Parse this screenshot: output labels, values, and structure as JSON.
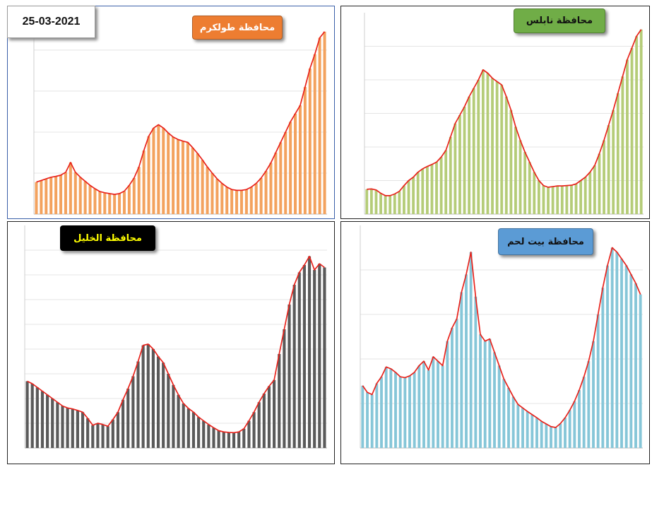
{
  "date": "25-03-2021",
  "chart_data": [
    {
      "type": "bar",
      "title": "محافظة طولكرم",
      "line_overlay": true,
      "grid": true,
      "grid_step": 1,
      "ylim": [
        0,
        4.55
      ],
      "bar_color": "#f3a25e",
      "line_color": "#e8231c",
      "label_bg": "#ed7d31",
      "label_fg": "#ffffff",
      "values": [
        0.78,
        0.82,
        0.86,
        0.9,
        0.92,
        0.95,
        1.02,
        1.26,
        1.02,
        0.9,
        0.8,
        0.7,
        0.62,
        0.55,
        0.52,
        0.5,
        0.48,
        0.5,
        0.56,
        0.7,
        0.88,
        1.15,
        1.55,
        1.9,
        2.1,
        2.18,
        2.1,
        1.98,
        1.88,
        1.82,
        1.78,
        1.75,
        1.62,
        1.48,
        1.32,
        1.15,
        1.0,
        0.86,
        0.75,
        0.66,
        0.6,
        0.58,
        0.58,
        0.6,
        0.66,
        0.75,
        0.88,
        1.05,
        1.25,
        1.5,
        1.75,
        2.0,
        2.25,
        2.45,
        2.65,
        3.1,
        3.55,
        3.9,
        4.3,
        4.45
      ]
    },
    {
      "type": "bar",
      "title": "محافظة نابلس",
      "line_overlay": true,
      "grid": true,
      "grid_step": 1,
      "ylim": [
        0,
        6
      ],
      "bar_color": "#b5cc78",
      "line_color": "#e8231c",
      "label_bg": "#70ad47",
      "label_fg": "#111111",
      "values": [
        0.74,
        0.75,
        0.72,
        0.62,
        0.55,
        0.55,
        0.6,
        0.68,
        0.85,
        1.0,
        1.1,
        1.25,
        1.35,
        1.42,
        1.48,
        1.55,
        1.7,
        1.9,
        2.3,
        2.7,
        2.95,
        3.2,
        3.5,
        3.75,
        4.0,
        4.3,
        4.2,
        4.05,
        3.95,
        3.85,
        3.5,
        3.1,
        2.6,
        2.2,
        1.85,
        1.55,
        1.25,
        1.0,
        0.85,
        0.8,
        0.82,
        0.84,
        0.84,
        0.85,
        0.86,
        0.9,
        1.0,
        1.1,
        1.25,
        1.45,
        1.8,
        2.2,
        2.65,
        3.1,
        3.6,
        4.1,
        4.6,
        4.95,
        5.3,
        5.5
      ]
    },
    {
      "type": "bar",
      "title": "محافظة الخليل",
      "line_overlay": true,
      "grid": true,
      "grid_step": 1,
      "ylim": [
        0,
        9
      ],
      "bar_color": "#5a5a5a",
      "line_color": "#e8231c",
      "label_bg": "#000000",
      "label_fg": "#ffff00",
      "values": [
        2.7,
        2.6,
        2.45,
        2.3,
        2.15,
        2.0,
        1.85,
        1.7,
        1.62,
        1.58,
        1.52,
        1.45,
        1.2,
        0.92,
        1.0,
        0.95,
        0.88,
        1.15,
        1.45,
        1.95,
        2.4,
        2.9,
        3.5,
        4.15,
        4.2,
        4.0,
        3.7,
        3.45,
        3.0,
        2.55,
        2.15,
        1.8,
        1.6,
        1.45,
        1.25,
        1.1,
        0.95,
        0.82,
        0.7,
        0.65,
        0.63,
        0.62,
        0.65,
        0.78,
        1.1,
        1.45,
        1.85,
        2.2,
        2.5,
        2.75,
        3.8,
        4.8,
        5.8,
        6.6,
        7.1,
        7.4,
        7.75,
        7.2,
        7.45,
        7.3
      ]
    },
    {
      "type": "bar",
      "title": "محافظة بيت لحم",
      "line_overlay": true,
      "grid": true,
      "grid_step": 1,
      "ylim": [
        0,
        5
      ],
      "bar_color": "#86c6d8",
      "line_color": "#e8231c",
      "label_bg": "#5b9bd5",
      "label_fg": "#111111",
      "values": [
        1.4,
        1.25,
        1.2,
        1.45,
        1.6,
        1.82,
        1.78,
        1.7,
        1.6,
        1.58,
        1.62,
        1.7,
        1.85,
        1.95,
        1.75,
        2.05,
        1.95,
        1.85,
        2.4,
        2.7,
        2.9,
        3.5,
        3.9,
        4.4,
        3.4,
        2.55,
        2.4,
        2.45,
        2.15,
        1.85,
        1.55,
        1.35,
        1.15,
        0.98,
        0.9,
        0.82,
        0.75,
        0.68,
        0.6,
        0.54,
        0.48,
        0.46,
        0.55,
        0.68,
        0.85,
        1.05,
        1.3,
        1.6,
        1.95,
        2.4,
        3.0,
        3.6,
        4.1,
        4.5,
        4.4,
        4.25,
        4.1,
        3.9,
        3.7,
        3.45
      ]
    }
  ]
}
